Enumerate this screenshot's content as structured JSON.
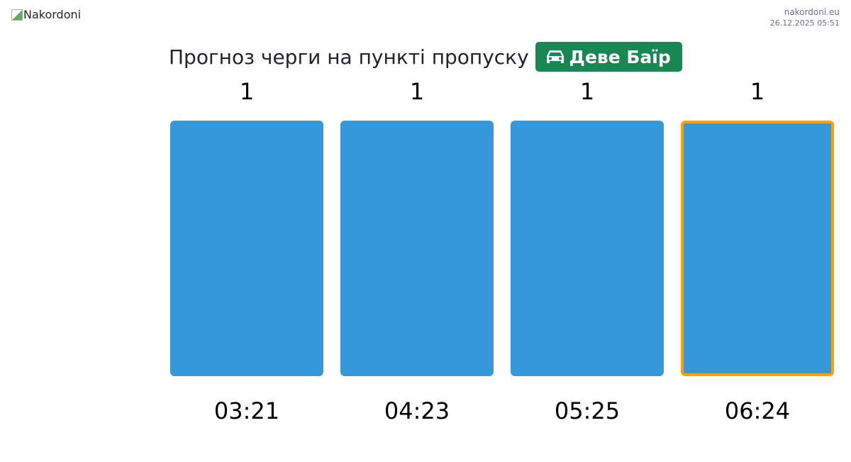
{
  "header": {
    "logo_alt": "Nakordoni",
    "site": "nakordoni.eu",
    "datetime": "26.12.2025 05:51"
  },
  "title": {
    "text": "Прогноз черги на пункті пропуску",
    "badge_label": "Деве Баїр",
    "badge_icon": "car-icon",
    "badge_color": "#198754"
  },
  "chart_data": {
    "type": "bar",
    "categories": [
      "03:21",
      "04:23",
      "05:25",
      "06:24"
    ],
    "values": [
      1,
      1,
      1,
      1
    ],
    "highlighted_index": 3,
    "bar_color": "#3498db",
    "highlight_color": "#ff9f00",
    "ylim": [
      0,
      1
    ]
  }
}
